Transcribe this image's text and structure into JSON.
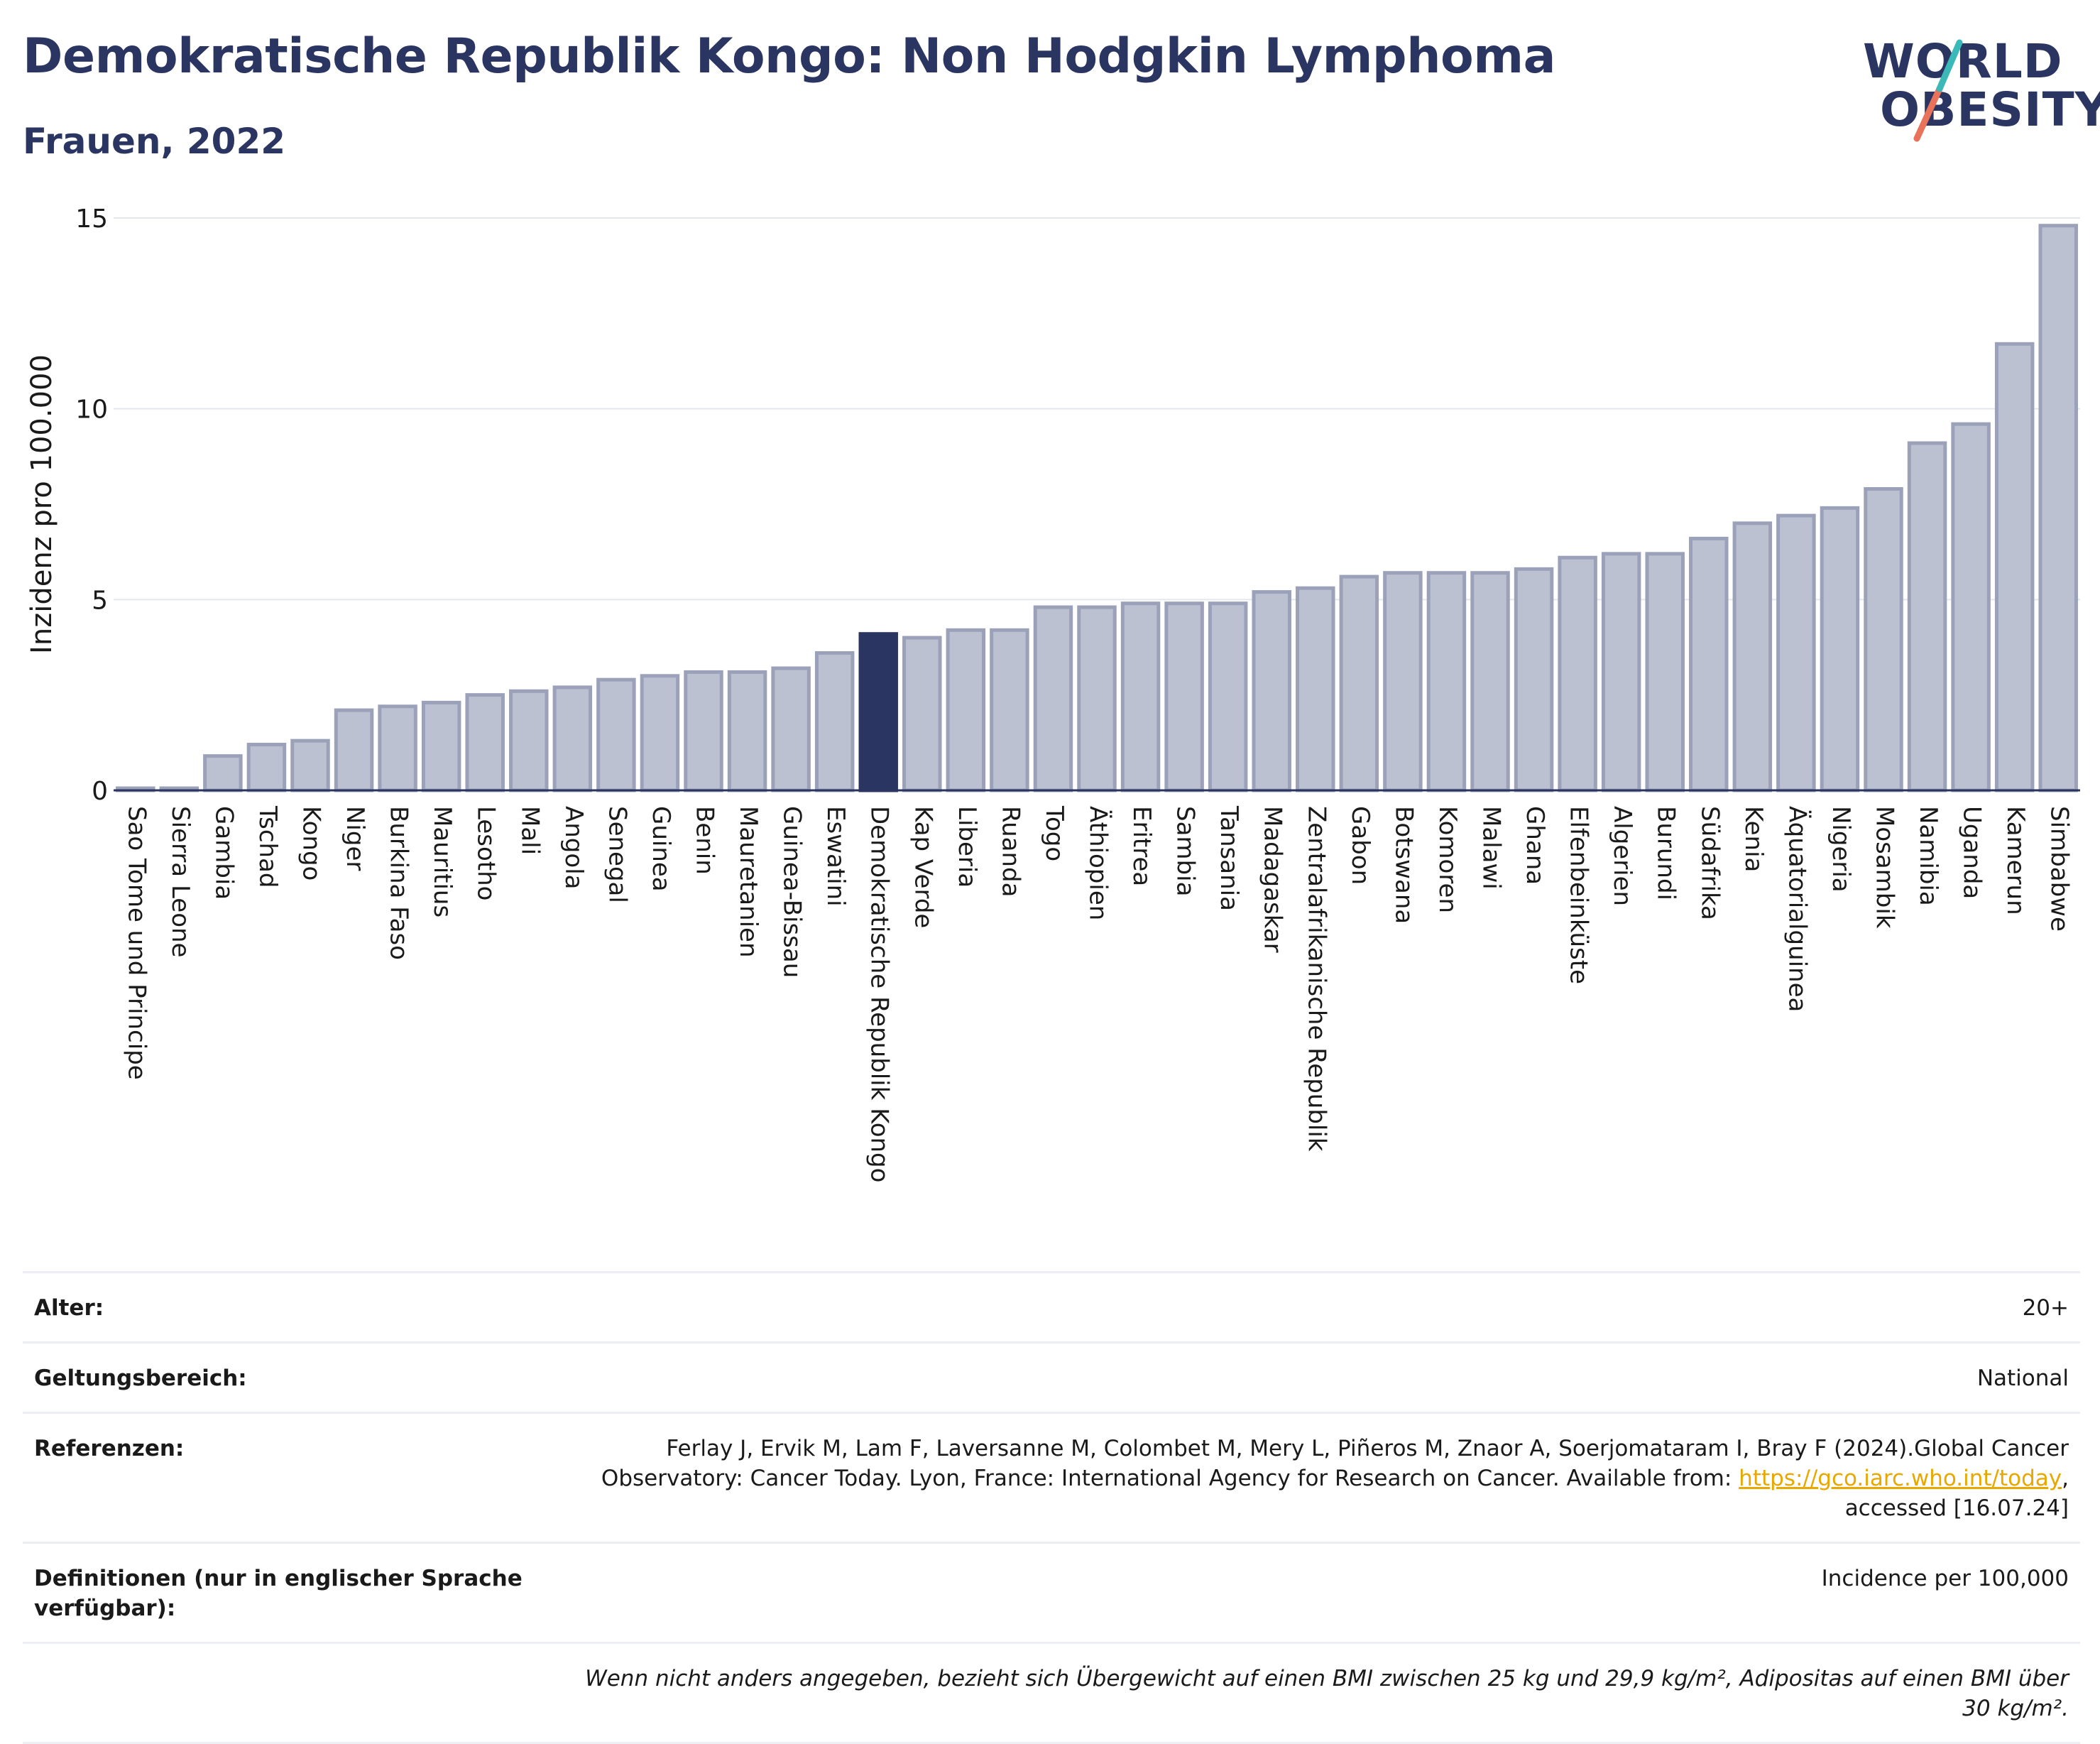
{
  "header": {
    "title": "Demokratische Republik Kongo: Non Hodgkin Lymphoma",
    "subtitle": "Frauen, 2022"
  },
  "logo": {
    "line1": "WORLD",
    "line2": "OBESITY"
  },
  "colors": {
    "bar": "#bcc1d1",
    "bar_border": "#9aa1b8",
    "highlight": "#2b3561",
    "grid": "#e4e6ee"
  },
  "chart_data": {
    "type": "bar",
    "ylabel": "Inzidenz pro 100.000",
    "ylim": [
      0,
      15
    ],
    "yticks": [
      0,
      5,
      10,
      15
    ],
    "highlight": "Demokratische Republik Kongo",
    "categories": [
      "Sao Tome und Principe",
      "Sierra Leone",
      "Gambia",
      "Tschad",
      "Kongo",
      "Niger",
      "Burkina Faso",
      "Mauritius",
      "Lesotho",
      "Mali",
      "Angola",
      "Senegal",
      "Guinea",
      "Benin",
      "Mauretanien",
      "Guinea-Bissau",
      "Eswatini",
      "Demokratische Republik Kongo",
      "Kap Verde",
      "Liberia",
      "Ruanda",
      "Togo",
      "Äthiopien",
      "Eritrea",
      "Sambia",
      "Tansania",
      "Madagaskar",
      "Zentralafrikanische Republik",
      "Gabon",
      "Botswana",
      "Komoren",
      "Malawi",
      "Ghana",
      "Elfenbeinküste",
      "Algerien",
      "Burundi",
      "Südafrika",
      "Kenia",
      "Äquatorialguinea",
      "Nigeria",
      "Mosambik",
      "Namibia",
      "Uganda",
      "Kamerun",
      "Simbabwe"
    ],
    "values": [
      0.05,
      0.05,
      0.9,
      1.2,
      1.3,
      2.1,
      2.2,
      2.3,
      2.5,
      2.6,
      2.7,
      2.9,
      3.0,
      3.1,
      3.1,
      3.2,
      3.6,
      4.1,
      4.0,
      4.2,
      4.2,
      4.8,
      4.8,
      4.9,
      4.9,
      4.9,
      5.2,
      5.3,
      5.6,
      5.7,
      5.7,
      5.7,
      5.8,
      6.1,
      6.2,
      6.2,
      6.6,
      7.0,
      7.2,
      7.4,
      7.9,
      9.1,
      9.6,
      11.7,
      14.8
    ]
  },
  "info": {
    "age_label": "Alter:",
    "age_value": "20+",
    "scope_label": "Geltungsbereich:",
    "scope_value": "National",
    "refs_label": "Referenzen:",
    "refs_text1": "Ferlay J, Ervik M, Lam F, Laversanne M, Colombet M, Mery L, Piñeros M, Znaor A, Soerjomataram I, Bray F (2024).Global Cancer Observatory: Cancer Today. Lyon, France: International Agency for Research on Cancer. Available from: ",
    "refs_link": "https://gco.iarc.who.int/today",
    "refs_text2": ", accessed [16.07.24]",
    "defs_label": "Definitionen (nur in englischer Sprache verfügbar):",
    "defs_value": "Incidence per 100,000",
    "note": "Wenn nicht anders angegeben, bezieht sich Übergewicht auf einen BMI zwischen 25 kg und 29,9 kg/m², Adipositas auf einen BMI über 30 kg/m²."
  }
}
